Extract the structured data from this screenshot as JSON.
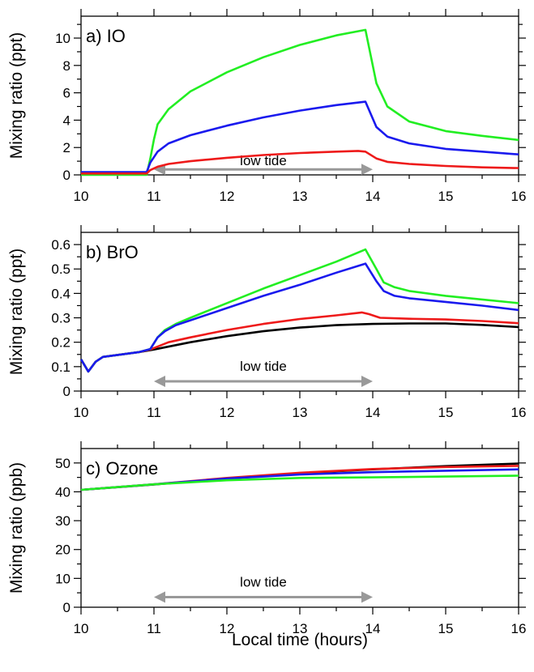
{
  "chart_data": [
    {
      "type": "line",
      "panel_label": "a) IO",
      "ylabel": "Mixing ratio (ppt)",
      "xlabel": "",
      "xlim": [
        10,
        16
      ],
      "ylim": [
        0,
        11.6
      ],
      "x_ticks": [
        10,
        11,
        12,
        13,
        14,
        15,
        16
      ],
      "y_ticks": [
        0,
        2,
        4,
        6,
        8,
        10
      ],
      "annotation": {
        "text": "low tide",
        "x_start": 11.0,
        "x_end": 14.0,
        "y": 0.4,
        "text_y": 1.0
      },
      "series": [
        {
          "color": "#22ee22",
          "points": [
            [
              10,
              0
            ],
            [
              10.9,
              0
            ],
            [
              10.95,
              1.2
            ],
            [
              11.0,
              2.6
            ],
            [
              11.05,
              3.7
            ],
            [
              11.2,
              4.8
            ],
            [
              11.5,
              6.1
            ],
            [
              12,
              7.5
            ],
            [
              12.5,
              8.6
            ],
            [
              13,
              9.5
            ],
            [
              13.5,
              10.2
            ],
            [
              13.9,
              10.6
            ],
            [
              14.05,
              6.7
            ],
            [
              14.2,
              5.0
            ],
            [
              14.5,
              3.9
            ],
            [
              15,
              3.2
            ],
            [
              15.5,
              2.85
            ],
            [
              16,
              2.55
            ]
          ]
        },
        {
          "color": "#1a1aee",
          "points": [
            [
              10,
              0.2
            ],
            [
              10.9,
              0.2
            ],
            [
              10.95,
              0.9
            ],
            [
              11.05,
              1.7
            ],
            [
              11.2,
              2.3
            ],
            [
              11.5,
              2.9
            ],
            [
              12,
              3.6
            ],
            [
              12.5,
              4.2
            ],
            [
              13,
              4.7
            ],
            [
              13.5,
              5.1
            ],
            [
              13.9,
              5.35
            ],
            [
              14.05,
              3.5
            ],
            [
              14.2,
              2.8
            ],
            [
              14.5,
              2.3
            ],
            [
              15,
              1.9
            ],
            [
              15.5,
              1.7
            ],
            [
              16,
              1.5
            ]
          ]
        },
        {
          "color": "#ee1a1a",
          "points": [
            [
              10,
              0.1
            ],
            [
              10.9,
              0.1
            ],
            [
              10.95,
              0.35
            ],
            [
              11.05,
              0.6
            ],
            [
              11.2,
              0.8
            ],
            [
              11.5,
              1.0
            ],
            [
              12,
              1.25
            ],
            [
              12.5,
              1.45
            ],
            [
              13,
              1.6
            ],
            [
              13.5,
              1.7
            ],
            [
              13.8,
              1.75
            ],
            [
              13.9,
              1.7
            ],
            [
              14.05,
              1.2
            ],
            [
              14.2,
              0.95
            ],
            [
              14.5,
              0.8
            ],
            [
              15,
              0.65
            ],
            [
              15.5,
              0.55
            ],
            [
              16,
              0.5
            ]
          ]
        }
      ]
    },
    {
      "type": "line",
      "panel_label": "b) BrO",
      "ylabel": "Mixing ratio (ppt)",
      "xlabel": "",
      "xlim": [
        10,
        16
      ],
      "ylim": [
        0,
        0.65
      ],
      "x_ticks": [
        10,
        11,
        12,
        13,
        14,
        15,
        16
      ],
      "y_ticks": [
        0,
        0.1,
        0.2,
        0.3,
        0.4,
        0.5,
        0.6
      ],
      "y_tick_labels": [
        "0",
        "0.1",
        "0.2",
        "0.3",
        "0.4",
        "0.5",
        "0.6"
      ],
      "annotation": {
        "text": "low tide",
        "x_start": 11.0,
        "x_end": 14.0,
        "y": 0.04,
        "text_y": 0.1
      },
      "series": [
        {
          "color": "#000000",
          "points": [
            [
              10,
              0.13
            ],
            [
              10.1,
              0.08
            ],
            [
              10.2,
              0.12
            ],
            [
              10.3,
              0.14
            ],
            [
              10.5,
              0.148
            ],
            [
              10.8,
              0.16
            ],
            [
              11,
              0.17
            ],
            [
              11.5,
              0.2
            ],
            [
              12,
              0.225
            ],
            [
              12.5,
              0.245
            ],
            [
              13,
              0.26
            ],
            [
              13.5,
              0.27
            ],
            [
              14,
              0.275
            ],
            [
              14.5,
              0.277
            ],
            [
              15,
              0.277
            ],
            [
              15.5,
              0.271
            ],
            [
              16,
              0.262
            ]
          ]
        },
        {
          "color": "#ee1a1a",
          "points": [
            [
              10,
              0.13
            ],
            [
              10.1,
              0.08
            ],
            [
              10.2,
              0.12
            ],
            [
              10.3,
              0.14
            ],
            [
              10.5,
              0.148
            ],
            [
              10.8,
              0.16
            ],
            [
              10.95,
              0.17
            ],
            [
              11.2,
              0.2
            ],
            [
              11.5,
              0.22
            ],
            [
              12,
              0.25
            ],
            [
              12.5,
              0.275
            ],
            [
              13,
              0.295
            ],
            [
              13.5,
              0.31
            ],
            [
              13.85,
              0.322
            ],
            [
              13.95,
              0.315
            ],
            [
              14.1,
              0.3
            ],
            [
              14.5,
              0.296
            ],
            [
              15,
              0.293
            ],
            [
              15.5,
              0.287
            ],
            [
              16,
              0.278
            ]
          ]
        },
        {
          "color": "#22ee22",
          "points": [
            [
              10,
              0.13
            ],
            [
              10.1,
              0.08
            ],
            [
              10.2,
              0.12
            ],
            [
              10.3,
              0.14
            ],
            [
              10.5,
              0.148
            ],
            [
              10.8,
              0.16
            ],
            [
              10.95,
              0.172
            ],
            [
              11.05,
              0.22
            ],
            [
              11.15,
              0.25
            ],
            [
              11.3,
              0.275
            ],
            [
              11.5,
              0.3
            ],
            [
              12,
              0.36
            ],
            [
              12.5,
              0.42
            ],
            [
              13,
              0.475
            ],
            [
              13.5,
              0.53
            ],
            [
              13.9,
              0.58
            ],
            [
              14.05,
              0.5
            ],
            [
              14.15,
              0.445
            ],
            [
              14.3,
              0.425
            ],
            [
              14.5,
              0.41
            ],
            [
              15,
              0.39
            ],
            [
              15.5,
              0.375
            ],
            [
              16,
              0.36
            ]
          ]
        },
        {
          "color": "#1a1aee",
          "points": [
            [
              10,
              0.13
            ],
            [
              10.1,
              0.08
            ],
            [
              10.2,
              0.12
            ],
            [
              10.3,
              0.14
            ],
            [
              10.5,
              0.148
            ],
            [
              10.8,
              0.16
            ],
            [
              10.95,
              0.172
            ],
            [
              11.05,
              0.22
            ],
            [
              11.15,
              0.245
            ],
            [
              11.3,
              0.27
            ],
            [
              11.5,
              0.29
            ],
            [
              12,
              0.34
            ],
            [
              12.5,
              0.39
            ],
            [
              13,
              0.435
            ],
            [
              13.5,
              0.485
            ],
            [
              13.9,
              0.522
            ],
            [
              14.05,
              0.45
            ],
            [
              14.15,
              0.41
            ],
            [
              14.3,
              0.39
            ],
            [
              14.5,
              0.38
            ],
            [
              15,
              0.365
            ],
            [
              15.5,
              0.35
            ],
            [
              16,
              0.332
            ]
          ]
        }
      ]
    },
    {
      "type": "line",
      "panel_label": "c) Ozone",
      "ylabel": "Mixing ratio (ppb)",
      "xlabel": "Local time (hours)",
      "xlim": [
        10,
        16
      ],
      "ylim": [
        0,
        55
      ],
      "x_ticks": [
        10,
        11,
        12,
        13,
        14,
        15,
        16
      ],
      "y_ticks": [
        0,
        10,
        20,
        30,
        40,
        50
      ],
      "annotation": {
        "text": "low tide",
        "x_start": 11.0,
        "x_end": 14.0,
        "y": 3.5,
        "text_y": 8.5
      },
      "series": [
        {
          "color": "#000000",
          "points": [
            [
              10,
              40.7
            ],
            [
              11,
              42.5
            ],
            [
              12,
              44.6
            ],
            [
              13,
              46.4
            ],
            [
              14,
              47.8
            ],
            [
              15,
              48.9
            ],
            [
              16,
              49.8
            ]
          ]
        },
        {
          "color": "#ee1a1a",
          "points": [
            [
              10,
              40.7
            ],
            [
              11,
              42.6
            ],
            [
              12,
              44.8
            ],
            [
              13,
              46.6
            ],
            [
              14,
              47.9
            ],
            [
              15,
              48.6
            ],
            [
              16,
              49.0
            ]
          ]
        },
        {
          "color": "#1a1aee",
          "points": [
            [
              10,
              40.7
            ],
            [
              11,
              42.6
            ],
            [
              12,
              44.6
            ],
            [
              13,
              46.0
            ],
            [
              14,
              46.8
            ],
            [
              15,
              47.3
            ],
            [
              16,
              47.8
            ]
          ]
        },
        {
          "color": "#22ee22",
          "points": [
            [
              10,
              40.7
            ],
            [
              11,
              42.6
            ],
            [
              12,
              44.0
            ],
            [
              13,
              44.8
            ],
            [
              14,
              45.0
            ],
            [
              15,
              45.3
            ],
            [
              16,
              45.6
            ]
          ]
        }
      ]
    }
  ]
}
